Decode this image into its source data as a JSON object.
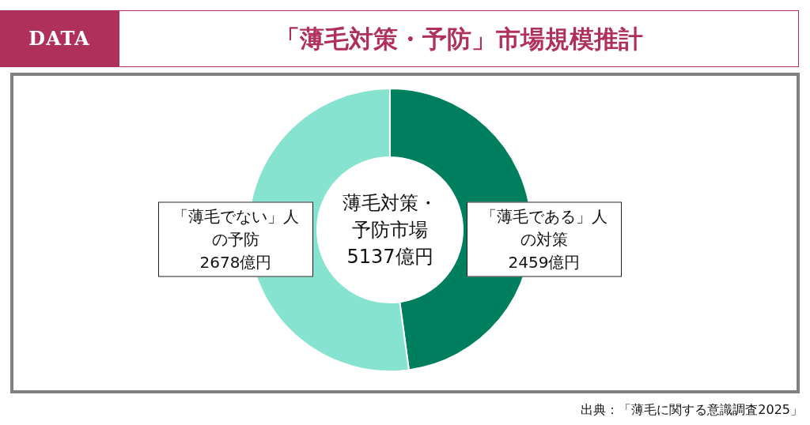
{
  "chart_data": {
    "type": "donut",
    "title": "「薄毛対策・予防」市場規模推計",
    "categories": [
      "「薄毛である」人の対策",
      "「薄毛でない」人の予防"
    ],
    "values": [
      2459,
      2678
    ],
    "colors": [
      "#007f5f",
      "#85e3cf"
    ],
    "value_labels": [
      "2459億円",
      "2678億円"
    ],
    "annotations": [
      "DATA",
      "薄毛対策・予防市場",
      "5137億円",
      "出典：「薄毛に関する意識調査2025」"
    ]
  }
}
